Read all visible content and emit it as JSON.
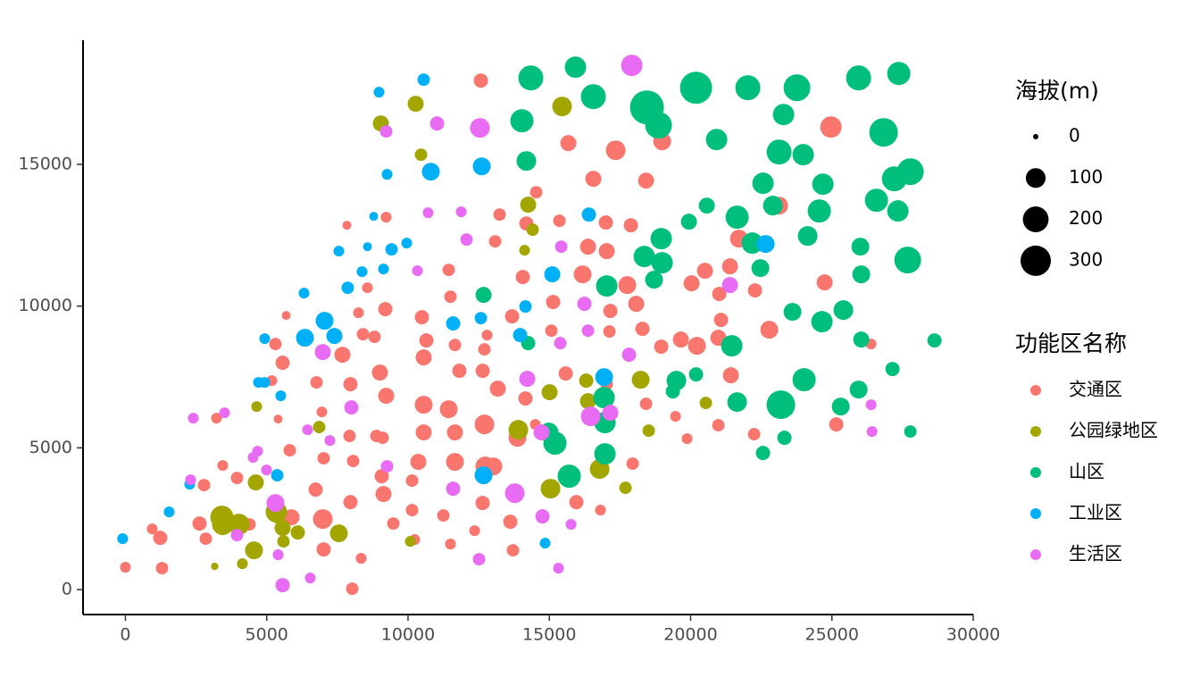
{
  "chart_data": {
    "type": "scatter",
    "xlim": [
      -1500,
      30000
    ],
    "ylim": [
      -880,
      19380
    ],
    "xticks": [
      0,
      5000,
      10000,
      15000,
      20000,
      25000,
      30000
    ],
    "yticks": [
      0,
      5000,
      10000,
      15000
    ],
    "size_legend_title": "海拔(m)",
    "size_ticks": [
      0,
      100,
      200,
      300
    ],
    "color_legend_title": "功能区名称",
    "series": [
      {
        "name": "交通区",
        "color": "#F8766D",
        "x": [
          12577,
          15674,
          14536,
          18992,
          17348,
          24964,
          18423,
          16558,
          13240,
          14188,
          15358,
          17001,
          17886,
          17032,
          16369,
          13082,
          11439,
          11502,
          10491,
          7837,
          9227,
          8564,
          5688,
          5309,
          5562,
          5182,
          3223,
          5404,
          3444,
          2781,
          3950,
          4392,
          2623,
          948,
          1232,
          2844,
          0,
          1296,
          8026,
          8342,
          10238,
          11502,
          13714,
          13620,
          12640,
          12356,
          11250,
          10144,
          10144,
          9480,
          9132,
          9069,
          7963,
          6984,
          7015,
          5878,
          6731,
          7015,
          5814,
          8058,
          8880,
          10365,
          11660,
          12735,
          13019,
          10554,
          11660,
          12703,
          13872,
          14504,
          13177,
          11818,
          12640,
          10554,
          11439,
          9227,
          9006,
          7963,
          6762,
          6952,
          7932,
          9101,
          10554,
          10649,
          11660,
          12703,
          12798,
          7679,
          8406,
          8816,
          9196,
          8248,
          14062,
          15136,
          15073,
          16179,
          17159,
          17127,
          17759,
          18075,
          18296,
          18960,
          19655,
          20224,
          20034,
          20508,
          21014,
          21077,
          20982,
          21393,
          22278,
          22784,
          21709,
          23131,
          24743,
          26386,
          25154,
          22246,
          20982,
          19876,
          19466,
          18423,
          17949,
          16811,
          15958,
          15579,
          13683,
          21425,
          17032,
          14157
        ],
        "y": [
          17955,
          15750,
          14018,
          15813,
          15498,
          16317,
          14427,
          14490,
          13230,
          12915,
          13010,
          12947,
          12852,
          11939,
          12096,
          12285,
          11277,
          10332,
          9608,
          12852,
          13136,
          10647,
          9671,
          8663,
          8001,
          7371,
          6048,
          6017,
          4379,
          3686,
          3938,
          2300,
          2331,
          2142,
          1827,
          1796,
          788,
          756,
          32,
          1103,
          1764,
          1607,
          1386,
          2394,
          3056,
          2079,
          2615,
          2804,
          3843,
          2331,
          3371,
          4001,
          3087,
          2489,
          1418,
          2552,
          3528,
          4631,
          4914,
          4536,
          5418,
          4505,
          4505,
          4347,
          4347,
          5544,
          5544,
          5828,
          5355,
          5828,
          7088,
          7718,
          7718,
          6521,
          6363,
          6836,
          7655,
          7245,
          7308,
          6269,
          5418,
          5355,
          8190,
          8789,
          8631,
          8474,
          8978,
          8285,
          9009,
          8915,
          9891,
          9765,
          11025,
          10143,
          9135,
          11120,
          9828,
          9104,
          10742,
          10080,
          9198,
          8568,
          8820,
          8600,
          10805,
          11246,
          10427,
          9513,
          8883,
          11403,
          10553,
          9167,
          12380,
          13545,
          10836,
          8663,
          5828,
          5481,
          5796,
          5324,
          6111,
          6552,
          4442,
          2804,
          3087,
          7623,
          9639,
          7560,
          7245,
          6741
        ],
        "size": [
          38,
          55,
          24,
          75,
          98,
          124,
          55,
          55,
          24,
          38,
          24,
          38,
          38,
          55,
          55,
          24,
          24,
          24,
          38,
          6,
          14,
          14,
          6,
          24,
          38,
          14,
          14,
          6,
          14,
          24,
          24,
          24,
          38,
          14,
          38,
          24,
          14,
          24,
          24,
          14,
          14,
          14,
          24,
          38,
          38,
          14,
          24,
          24,
          24,
          24,
          55,
          38,
          38,
          98,
          38,
          55,
          38,
          24,
          24,
          24,
          24,
          55,
          75,
          98,
          75,
          55,
          55,
          98,
          75,
          14,
          55,
          38,
          38,
          75,
          75,
          55,
          55,
          38,
          24,
          14,
          24,
          24,
          55,
          38,
          24,
          24,
          14,
          55,
          24,
          24,
          38,
          14,
          38,
          38,
          24,
          75,
          38,
          24,
          75,
          55,
          38,
          38,
          55,
          75,
          55,
          55,
          38,
          38,
          55,
          55,
          38,
          75,
          75,
          75,
          55,
          14,
          38,
          24,
          24,
          14,
          14,
          24,
          24,
          14,
          38,
          38,
          38,
          55,
          24,
          38
        ]
      },
      {
        "name": "公园绿地区",
        "color": "#A3A500",
        "x": [
          10270,
          15452,
          9038,
          10460,
          14252,
          14410,
          14125,
          6857,
          4645,
          15010,
          16306,
          18233,
          16369,
          20540,
          18518,
          13904,
          16780,
          17696,
          15042,
          4614,
          3413,
          3444,
          4013,
          5340,
          5562,
          7552,
          6099,
          5404,
          4550,
          5593,
          4140,
          3160,
          10080
        ],
        "y": [
          17136,
          17042,
          16443,
          15341,
          13577,
          12695,
          11970,
          5733,
          6458,
          6962,
          7371,
          7403,
          6647,
          6584,
          5607,
          5639,
          4253,
          3591,
          3560,
          3780,
          2552,
          2300,
          2300,
          2741,
          2174,
          1985,
          2016,
          2583,
          1386,
          1701,
          914,
          819,
          1701
        ],
        "size": [
          55,
          98,
          55,
          24,
          55,
          24,
          14,
          24,
          14,
          55,
          38,
          75,
          55,
          24,
          24,
          98,
          98,
          24,
          98,
          55,
          153,
          124,
          124,
          124,
          55,
          75,
          38,
          38,
          75,
          24,
          14,
          2,
          14
        ]
      },
      {
        "name": "山区",
        "color": "#00BF7D",
        "x": [
          14346,
          15926,
          16558,
          18454,
          18865,
          20192,
          22025,
          23763,
          25944,
          27366,
          23289,
          26828,
          14030,
          14188,
          20919,
          23131,
          23984,
          27776,
          27208,
          22562,
          24680,
          26576,
          27334,
          24553,
          22910,
          21646,
          20572,
          19940,
          22183,
          24142,
          26007,
          18960,
          18360,
          18992,
          18707,
          22468,
          26038,
          27682,
          17032,
          12672,
          14252,
          21456,
          23605,
          24648,
          25406,
          26038,
          28630,
          27144,
          19497,
          20192,
          19371,
          16938,
          16969,
          24016,
          21646,
          23194,
          25944,
          25312,
          27776,
          23321,
          22562,
          14978,
          15200,
          16969,
          15705
        ],
        "y": [
          18050,
          18428,
          17388,
          17010,
          16380,
          17703,
          17703,
          17703,
          18050,
          18207,
          16758,
          16128,
          16538,
          15120,
          15876,
          15435,
          15341,
          14742,
          14490,
          14333,
          14301,
          13734,
          13356,
          13356,
          13545,
          13136,
          13545,
          12978,
          12222,
          12474,
          12096,
          12380,
          11750,
          11529,
          10931,
          11340,
          11120,
          11624,
          10710,
          10395,
          8694,
          8600,
          9797,
          9450,
          9860,
          8820,
          8789,
          7781,
          7371,
          7592,
          6993,
          6773,
          5891,
          7403,
          6615,
          6521,
          7056,
          6458,
          5576,
          5355,
          4820,
          5544,
          5166,
          4788,
          4001
        ],
        "size": [
          185,
          124,
          185,
          392,
          220,
          344,
          185,
          220,
          185,
          153,
          124,
          259,
          153,
          98,
          124,
          185,
          124,
          220,
          185,
          124,
          124,
          153,
          124,
          153,
          98,
          153,
          55,
          55,
          124,
          98,
          75,
          124,
          124,
          124,
          75,
          75,
          75,
          220,
          124,
          55,
          38,
          124,
          75,
          124,
          98,
          55,
          38,
          38,
          98,
          38,
          38,
          124,
          124,
          153,
          98,
          259,
          75,
          75,
          24,
          38,
          38,
          98,
          153,
          124,
          153
        ]
      },
      {
        "name": "工业区",
        "color": "#00B0F6",
        "x": [
          8974,
          10554,
          9259,
          10807,
          12608,
          8785,
          8564,
          9417,
          9954,
          7552,
          7868,
          9132,
          8374,
          6320,
          7047,
          6352,
          7394,
          4930,
          11597,
          12577,
          13967,
          14157,
          15105,
          16400,
          22657,
          16938,
          5498,
          4708,
          4930,
          5372,
          12672,
          1548,
          2275,
          -100,
          14852
        ],
        "y": [
          17546,
          17987,
          14648,
          14742,
          14931,
          13167,
          12096,
          12002,
          12222,
          11939,
          10647,
          11309,
          11214,
          10458,
          9482,
          8883,
          8946,
          8852,
          9387,
          9576,
          8978,
          9986,
          11120,
          13230,
          12191,
          7497,
          6836,
          7308,
          7308,
          4032,
          4032,
          2741,
          3717,
          1796,
          1638
        ],
        "size": [
          14,
          24,
          14,
          75,
          75,
          6,
          6,
          24,
          14,
          14,
          24,
          14,
          14,
          14,
          75,
          75,
          55,
          14,
          38,
          24,
          38,
          24,
          55,
          38,
          75,
          75,
          14,
          14,
          14,
          24,
          75,
          14,
          14,
          14,
          14
        ]
      },
      {
        "name": "生活区",
        "color": "#E76BF3",
        "x": [
          17917,
          11028,
          9227,
          12545,
          10712,
          11882,
          12071,
          15421,
          10333,
          16242,
          16369,
          15389,
          21393,
          6984,
          14220,
          17822,
          7995,
          16464,
          17159,
          6446,
          7236,
          9259,
          11597,
          14726,
          13778,
          4677,
          4993,
          4519,
          2307,
          2402,
          3508,
          5309,
          3950,
          5404,
          5562,
          6541,
          12514,
          14757,
          15768,
          15326,
          26386,
          26418
        ],
        "y": [
          18491,
          16443,
          16160,
          16286,
          13293,
          13325,
          12348,
          12096,
          11246,
          10080,
          9135,
          8694,
          10742,
          8379,
          7434,
          8285,
          6426,
          6111,
          6237,
          5639,
          5261,
          4347,
          3560,
          5544,
          3402,
          4883,
          4221,
          4662,
          3875,
          6048,
          6237,
          3056,
          1922,
          1229,
          158,
          410,
          1071,
          2583,
          2300,
          756,
          6521,
          5576
        ],
        "size": [
          124,
          38,
          24,
          98,
          14,
          14,
          24,
          24,
          14,
          38,
          24,
          24,
          55,
          55,
          55,
          38,
          38,
          98,
          55,
          14,
          14,
          24,
          38,
          55,
          98,
          14,
          14,
          14,
          14,
          14,
          14,
          75,
          24,
          14,
          38,
          14,
          24,
          38,
          14,
          14,
          14,
          14
        ]
      }
    ]
  }
}
